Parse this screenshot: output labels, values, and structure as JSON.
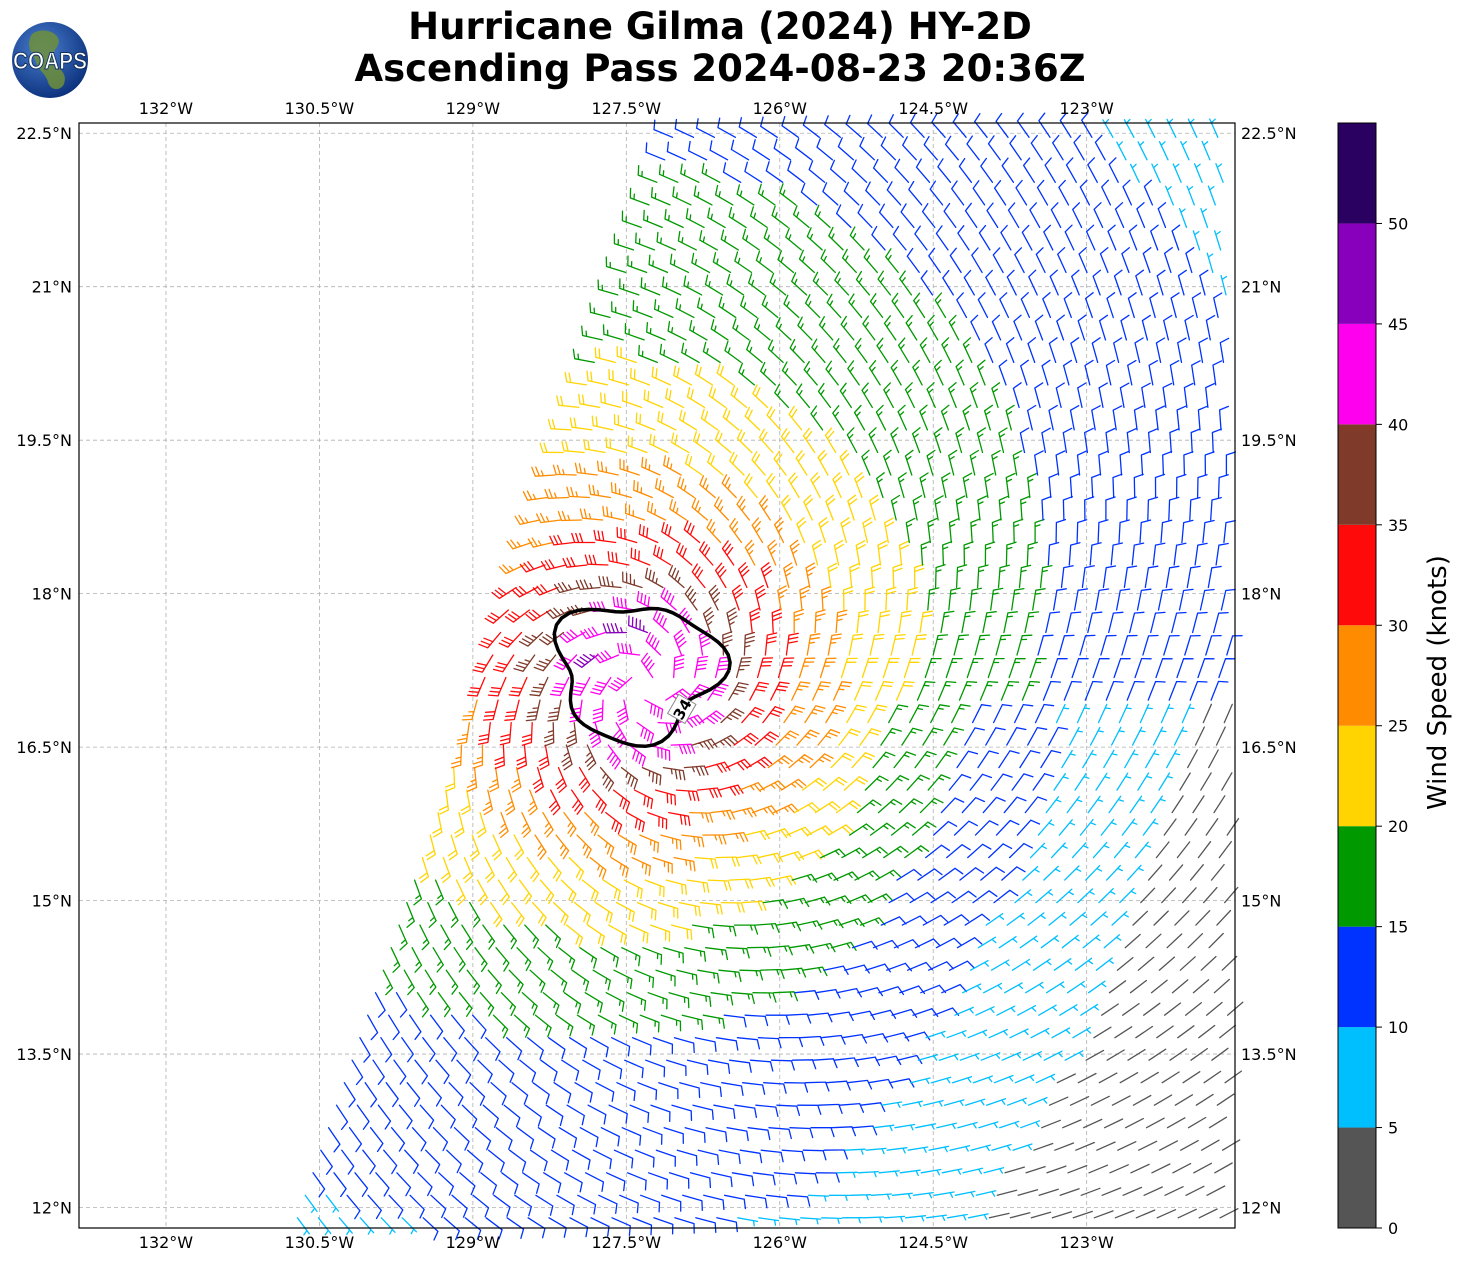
{
  "header": {
    "title_line1": "Hurricane Gilma (2024) HY-2D",
    "title_line2": "Ascending Pass 2024-08-23 20:36Z",
    "logo_text": "COAPS"
  },
  "chart_data": {
    "type": "wind-barb-map",
    "title": "Hurricane Gilma (2024) HY-2D Ascending Pass 2024-08-23 20:36Z",
    "lon_range": [
      -132.85,
      -121.55
    ],
    "lat_range": [
      11.8,
      22.6
    ],
    "lon_ticks": [
      -132,
      -130.5,
      -129,
      -127.5,
      -126,
      -124.5,
      -123
    ],
    "lon_tick_labels": [
      "132°W",
      "130.5°W",
      "129°W",
      "127.5°W",
      "126°W",
      "124.5°W",
      "123°W"
    ],
    "lat_ticks": [
      22.5,
      21,
      19.5,
      18,
      16.5,
      15,
      13.5,
      12
    ],
    "lat_tick_labels": [
      "22.5°N",
      "21°N",
      "19.5°N",
      "18°N",
      "16.5°N",
      "15°N",
      "13.5°N",
      "12°N"
    ],
    "grid": true,
    "storm_center": {
      "lon": -127.3,
      "lat": 17.1
    },
    "contour": {
      "level": 34,
      "label": "34",
      "color": "#000000"
    },
    "swath_west_edge": [
      [
        -127.0,
        22.6
      ],
      [
        -130.75,
        11.8
      ]
    ],
    "colorbar": {
      "label": "Wind Speed (knots)",
      "bounds": [
        0,
        5,
        10,
        15,
        20,
        25,
        30,
        35,
        40,
        45,
        50,
        55
      ],
      "tick_labels": [
        "0",
        "5",
        "10",
        "15",
        "20",
        "25",
        "30",
        "35",
        "40",
        "45",
        "50"
      ],
      "colors": [
        "#555555",
        "#00bfff",
        "#0033ff",
        "#009900",
        "#ffd400",
        "#ff8c00",
        "#ff0a0a",
        "#7f3a2a",
        "#ff00ee",
        "#8800bb",
        "#2a0060"
      ]
    }
  }
}
